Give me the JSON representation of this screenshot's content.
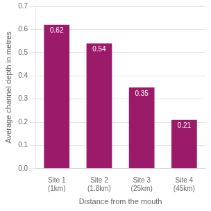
{
  "chart_data": {
    "type": "bar",
    "categories": [
      "Site 1\n(1km)",
      "Site 2\n(1.8km)",
      "Site 3\n(25km)",
      "Site 4\n(45km)"
    ],
    "values": [
      0.62,
      0.54,
      0.35,
      0.21
    ],
    "color": "#9b1a6a",
    "xlabel": "Distance from the mouth",
    "ylabel": "Average channel depth in metres",
    "ylim": [
      0,
      0.7
    ],
    "yticks": [
      {
        "value": 0,
        "label": "0.0"
      },
      0.1,
      0.2,
      0.3,
      0.4,
      0.5,
      0.6,
      0.7
    ],
    "grid": true,
    "data_labels": true
  }
}
